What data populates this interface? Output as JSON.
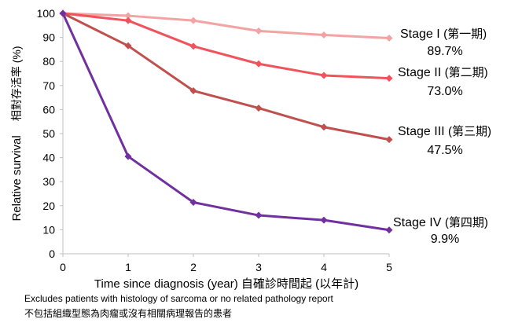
{
  "chart_data": {
    "type": "line",
    "title": "",
    "x": [
      0,
      1,
      2,
      3,
      4,
      5
    ],
    "xlim": [
      0,
      5
    ],
    "ylim": [
      0,
      100
    ],
    "yticks": [
      0,
      10,
      20,
      30,
      40,
      50,
      60,
      70,
      80,
      90,
      100
    ],
    "xlabel": "Time since diagnosis (year) 自確診時間起 (以年計)",
    "ylabel": "Relative survival",
    "ylabel_zh": "相對存活率 (%)",
    "grid": false,
    "series": [
      {
        "name": "Stage I",
        "name_zh": "(第一期)",
        "values": [
          100,
          99.0,
          97.0,
          92.7,
          91.0,
          89.7
        ],
        "final_label": "89.7%",
        "color": "#f4a3a3"
      },
      {
        "name": "Stage II",
        "name_zh": "(第二期)",
        "values": [
          100,
          97.0,
          86.3,
          79.0,
          74.2,
          73.0
        ],
        "final_label": "73.0%",
        "color": "#f0535b"
      },
      {
        "name": "Stage III",
        "name_zh": "(第三期)",
        "values": [
          100,
          86.5,
          67.8,
          60.6,
          52.7,
          47.5
        ],
        "final_label": "47.5%",
        "color": "#c0504d"
      },
      {
        "name": "Stage IV",
        "name_zh": "(第四期)",
        "values": [
          100,
          40.5,
          21.4,
          16.0,
          14.0,
          9.9
        ],
        "final_label": "9.9%",
        "color": "#7030a0"
      }
    ]
  },
  "notes": {
    "en": "Excludes patients with histology of sarcoma or no related pathology report",
    "zh": "不包括組織型態為肉瘤或沒有相關病理報告的患者"
  }
}
